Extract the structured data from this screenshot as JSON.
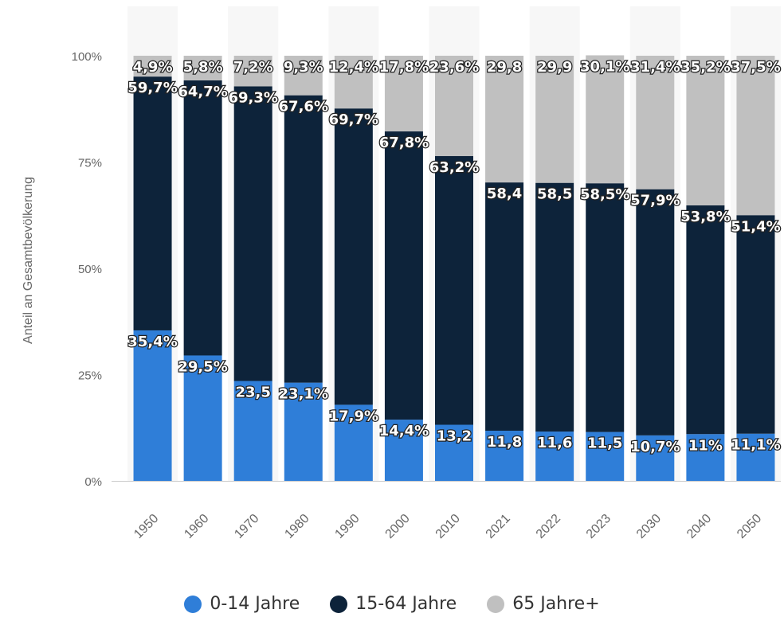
{
  "chart_data": {
    "type": "bar",
    "stacked": true,
    "percent": true,
    "ylabel": "Anteil an Gesamtbevölkerung",
    "xlabel": "",
    "ylim": [
      0,
      100
    ],
    "yticks": [
      "0%",
      "25%",
      "50%",
      "75%",
      "100%"
    ],
    "categories": [
      "1950",
      "1960",
      "1970",
      "1980",
      "1990",
      "2000",
      "2010",
      "2021",
      "2022",
      "2023",
      "2030",
      "2040",
      "2050"
    ],
    "series": [
      {
        "name": "0-14 Jahre",
        "color": "#2f7ed8",
        "values": [
          35.4,
          29.5,
          23.5,
          23.1,
          17.9,
          14.4,
          13.2,
          11.8,
          11.6,
          11.5,
          10.7,
          11,
          11.1
        ],
        "labels": [
          "35,4%",
          "29,5%",
          "23,5",
          "23,1%",
          "17,9%",
          "14,4%",
          "13,2",
          "11,8",
          "11,6",
          "11,5",
          "10,7%",
          "11%",
          "11,1%"
        ]
      },
      {
        "name": "15-64 Jahre",
        "color": "#0d233a",
        "values": [
          59.7,
          64.7,
          69.3,
          67.6,
          69.7,
          67.8,
          63.2,
          58.4,
          58.5,
          58.5,
          57.9,
          53.8,
          51.4
        ],
        "labels": [
          "59,7%",
          "64,7%",
          "69,3%",
          "67,6%",
          "69,7%",
          "67,8%",
          "63,2%",
          "58,4",
          "58,5",
          "58,5%",
          "57,9%",
          "53,8%",
          "51,4%"
        ]
      },
      {
        "name": "65 Jahre+",
        "color": "#c0c0c0",
        "values": [
          4.9,
          5.8,
          7.2,
          9.3,
          12.4,
          17.8,
          23.6,
          29.8,
          29.9,
          30.1,
          31.4,
          35.2,
          37.5
        ],
        "labels": [
          "4,9%",
          "5,8%",
          "7,2%",
          "9,3%",
          "12,4%",
          "17,8%",
          "23,6%",
          "29,8",
          "29,9",
          "30,1%",
          "31,4%",
          "35,2%",
          "37,5%"
        ]
      }
    ],
    "grid": false,
    "legend_position": "bottom"
  },
  "legend": {
    "items": [
      {
        "label": "0-14 Jahre",
        "color": "#2f7ed8"
      },
      {
        "label": "15-64 Jahre",
        "color": "#0d233a"
      },
      {
        "label": "65 Jahre+",
        "color": "#c0c0c0"
      }
    ]
  }
}
